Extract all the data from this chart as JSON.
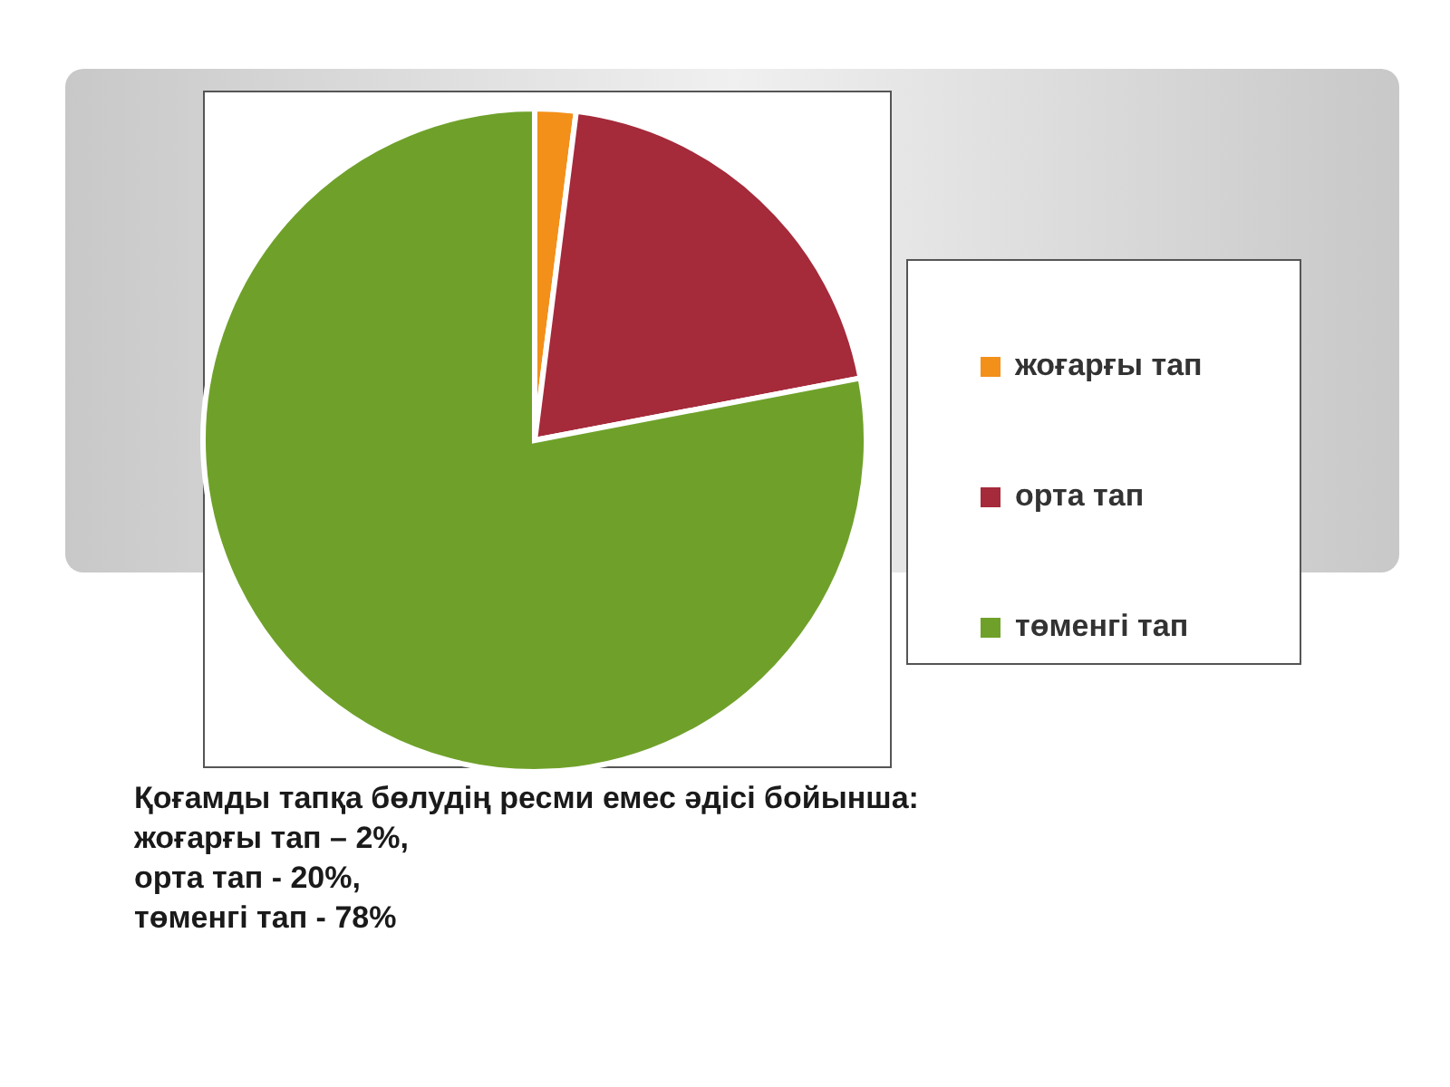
{
  "chart_data": {
    "type": "pie",
    "categories": [
      "жоғарғы тап",
      "орта тап",
      "төменгі тап"
    ],
    "values": [
      2,
      20,
      78
    ],
    "colors": [
      "#f39019",
      "#a52a3a",
      "#6fa12a"
    ],
    "legend": "right",
    "annotations": [
      "Қоғамды тапқа бөлудің ресми емес әдісі бойынша:",
      "жоғарғы тап  – 2%,",
      "орта тап - 20%,",
      "төменгі тап - 78%"
    ]
  }
}
